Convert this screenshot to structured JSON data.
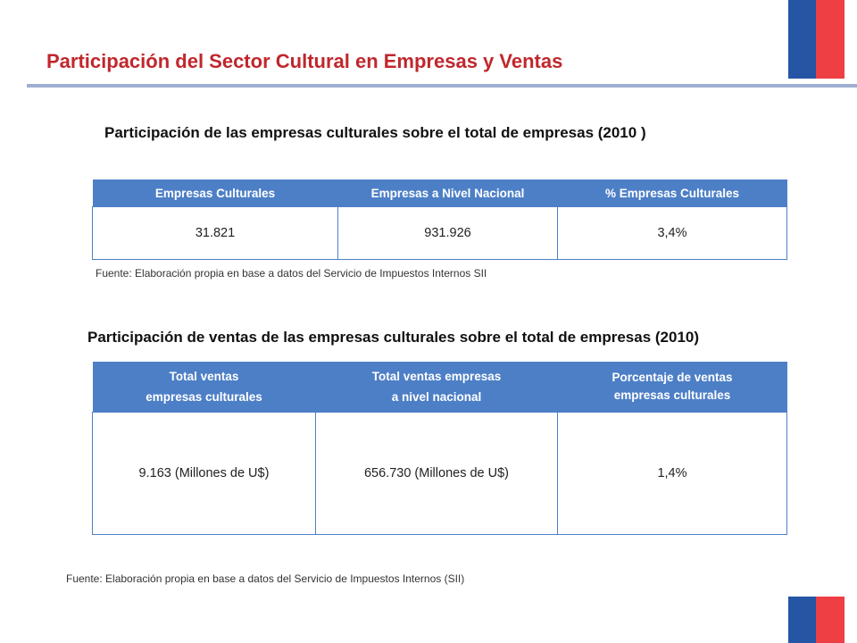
{
  "slide": {
    "title": "Participación del Sector Cultural en Empresas y Ventas"
  },
  "section1": {
    "title": "Participación de las empresas culturales sobre el total de empresas (2010 )",
    "headers": [
      "Empresas Culturales",
      "Empresas a Nivel Nacional",
      "% Empresas Culturales"
    ],
    "row": [
      "31.821",
      "931.926",
      "3,4%"
    ],
    "source": "Fuente: Elaboración propia en base a datos del Servicio de Impuestos Internos SII"
  },
  "section2": {
    "title": "Participación de ventas de las empresas culturales sobre el total de empresas (2010)",
    "headers": [
      {
        "line1": "Total ventas",
        "line2": "empresas culturales"
      },
      {
        "line1": "Total ventas empresas",
        "line2": "a nivel nacional"
      },
      {
        "line1": "Porcentaje de ventas",
        "line2": "empresas culturales"
      }
    ],
    "row": [
      "9.163 (Millones de U$)",
      "656.730 (Millones de U$)",
      "1,4%"
    ],
    "source": "Fuente: Elaboración propia en base a datos del Servicio de Impuestos Internos (SII)"
  },
  "colors": {
    "title_red": "#c0272d",
    "header_blue": "#4d7fc7",
    "flag_blue": "#2555a4",
    "flag_red": "#ee3f45"
  }
}
